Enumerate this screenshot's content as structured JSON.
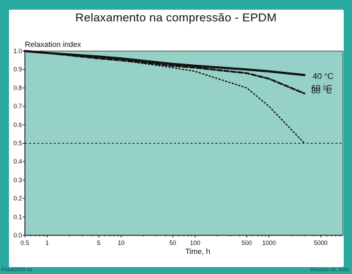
{
  "chart_data": {
    "type": "line",
    "title": "Relaxamento na compressão - EPDM",
    "xlabel": "Time, h",
    "ylabel": "Relaxation index",
    "x_scale": "log",
    "xlim": [
      0.5,
      10000
    ],
    "ylim": [
      0,
      1.0
    ],
    "x_ticks": [
      {
        "value": 0.5,
        "label": "0.5"
      },
      {
        "value": 1,
        "label": "1"
      },
      {
        "value": 5,
        "label": "5"
      },
      {
        "value": 10,
        "label": "10"
      },
      {
        "value": 50,
        "label": "50"
      },
      {
        "value": 100,
        "label": "100"
      },
      {
        "value": 500,
        "label": "500"
      },
      {
        "value": 1000,
        "label": "1000"
      },
      {
        "value": 5000,
        "label": "5000"
      }
    ],
    "y_ticks": [
      {
        "value": 0,
        "label": "0.0"
      },
      {
        "value": 0.1,
        "label": "0.1"
      },
      {
        "value": 0.2,
        "label": "0.2"
      },
      {
        "value": 0.3,
        "label": "0.3"
      },
      {
        "value": 0.4,
        "label": "0.4"
      },
      {
        "value": 0.5,
        "label": "0.5"
      },
      {
        "value": 0.6,
        "label": "0.6"
      },
      {
        "value": 0.7,
        "label": "0.7"
      },
      {
        "value": 0.8,
        "label": "0.8"
      },
      {
        "value": 0.9,
        "label": "0.9"
      },
      {
        "value": 1.0,
        "label": "1.0"
      }
    ],
    "reference_line": {
      "y": 0.5,
      "style": "dashed"
    },
    "grid": false,
    "plot_background": "#96d1c7",
    "series": [
      {
        "name": "40 °C",
        "style": "solid",
        "x": [
          0.5,
          1,
          5,
          10,
          50,
          100,
          500,
          1000,
          3000
        ],
        "y": [
          1.0,
          0.99,
          0.97,
          0.96,
          0.93,
          0.92,
          0.9,
          0.89,
          0.87
        ]
      },
      {
        "name": "60 °C",
        "style": "dashed",
        "x": [
          0.5,
          1,
          5,
          10,
          50,
          100,
          500,
          1000,
          3000
        ],
        "y": [
          1.0,
          0.99,
          0.96,
          0.95,
          0.92,
          0.91,
          0.88,
          0.85,
          0.77
        ]
      },
      {
        "name": "80 °C",
        "style": "dotted",
        "x": [
          0.5,
          1,
          5,
          10,
          50,
          100,
          500,
          1000,
          3000
        ],
        "y": [
          1.0,
          0.99,
          0.96,
          0.95,
          0.91,
          0.89,
          0.8,
          0.7,
          0.5
        ]
      }
    ]
  },
  "footer": {
    "left": "Fixed/2020-18",
    "right": "Revision 05, 2000"
  },
  "colors": {
    "frame": "#2aa9a0",
    "plot_fill": "#96d1c7",
    "line": "#111111"
  }
}
